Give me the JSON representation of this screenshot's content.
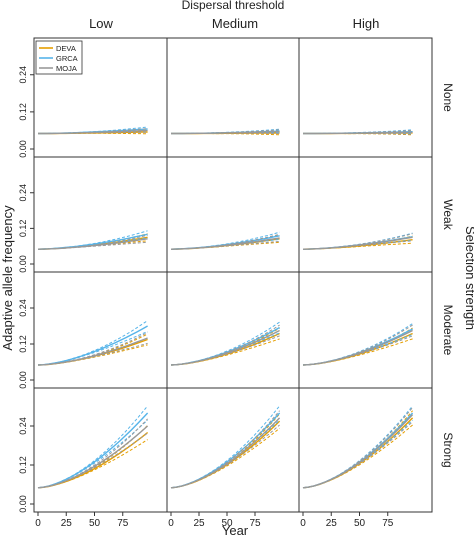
{
  "chart_data": {
    "type": "line",
    "title": "Dispersal threshold",
    "xlabel": "Year",
    "ylabel": "Adaptive allele frequency",
    "right_label": "Selection strength",
    "columns": [
      "Low",
      "Medium",
      "High"
    ],
    "rows": [
      "None",
      "Weak",
      "Moderate",
      "Strong"
    ],
    "x_ticks": [
      0,
      25,
      50,
      75
    ],
    "xlim": [
      0,
      100
    ],
    "ylim": [
      0,
      0.32
    ],
    "y_ticks": [
      [
        "0.00",
        "0.12",
        "0.24"
      ],
      [
        "0.00",
        "0.12",
        "0.24"
      ],
      [
        "0.00",
        "0.12",
        "0.24"
      ],
      [
        "0.00",
        "0.12",
        "0.24"
      ]
    ],
    "y_tick_values": [
      0,
      0.12,
      0.24
    ],
    "legend": {
      "placement": "top-left",
      "entries": [
        {
          "name": "DEVA",
          "color": "#E69F00"
        },
        {
          "name": "GRCA",
          "color": "#56B4E9"
        },
        {
          "name": "MOJA",
          "color": "#999999"
        }
      ]
    },
    "notes": "Solid lines are means; dashed lines show upper/lower bounds. Each curve starts at ~0.05 at year 0.",
    "series_shape": {
      "start": 0.05,
      "end_values": {
        "None": {
          "Low": {
            "DEVA": 0.055,
            "GRCA": 0.065,
            "MOJA": 0.06
          },
          "Medium": {
            "DEVA": 0.052,
            "GRCA": 0.058,
            "MOJA": 0.056
          },
          "High": {
            "DEVA": 0.052,
            "GRCA": 0.056,
            "MOJA": 0.054
          }
        },
        "Weak": {
          "Low": {
            "DEVA": 0.09,
            "GRCA": 0.1,
            "MOJA": 0.085
          },
          "Medium": {
            "DEVA": 0.085,
            "GRCA": 0.095,
            "MOJA": 0.088
          },
          "High": {
            "DEVA": 0.082,
            "GRCA": 0.092,
            "MOJA": 0.09
          }
        },
        "Moderate": {
          "Low": {
            "DEVA": 0.135,
            "GRCA": 0.18,
            "MOJA": 0.14
          },
          "Medium": {
            "DEVA": 0.155,
            "GRCA": 0.175,
            "MOJA": 0.165
          },
          "High": {
            "DEVA": 0.155,
            "GRCA": 0.17,
            "MOJA": 0.165
          }
        },
        "Strong": {
          "Low": {
            "DEVA": 0.22,
            "GRCA": 0.28,
            "MOJA": 0.24
          },
          "Medium": {
            "DEVA": 0.255,
            "GRCA": 0.28,
            "MOJA": 0.265
          },
          "High": {
            "DEVA": 0.265,
            "GRCA": 0.28,
            "MOJA": 0.275
          }
        }
      },
      "band_widths": {
        "None": 0.006,
        "Weak": 0.012,
        "Moderate": 0.018,
        "Strong": 0.022
      }
    }
  }
}
